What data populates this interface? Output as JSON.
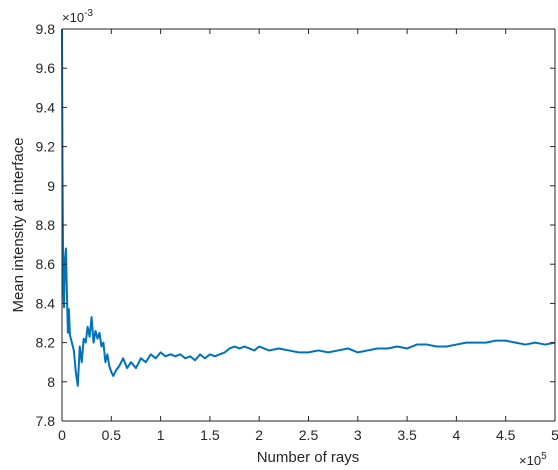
{
  "chart_data": {
    "type": "line",
    "title": "",
    "xlabel": "Number of rays",
    "ylabel": "Mean intensity at interface",
    "x_multiplier_label": "×10",
    "x_multiplier_exp": "5",
    "y_multiplier_label": "×10",
    "y_multiplier_exp": "-3",
    "xlim": [
      0,
      5
    ],
    "ylim": [
      7.8,
      9.8
    ],
    "xticks": [
      0,
      0.5,
      1,
      1.5,
      2,
      2.5,
      3,
      3.5,
      4,
      4.5,
      5
    ],
    "xtick_labels": [
      "0",
      "0.5",
      "1",
      "1.5",
      "2",
      "2.5",
      "3",
      "3.5",
      "4",
      "4.5",
      "5"
    ],
    "yticks": [
      7.8,
      8,
      8.2,
      8.4,
      8.6,
      8.8,
      9,
      9.2,
      9.4,
      9.6,
      9.8
    ],
    "ytick_labels": [
      "7.8",
      "8",
      "8.2",
      "8.4",
      "8.6",
      "8.8",
      "9",
      "9.2",
      "9.4",
      "9.6",
      "9.8"
    ],
    "grid": false,
    "line_color": "#0072BD",
    "series": [
      {
        "x": [
          0,
          0.005,
          0.01,
          0.015,
          0.02,
          0.03,
          0.04,
          0.05,
          0.06,
          0.07,
          0.08,
          0.1,
          0.12,
          0.14,
          0.16,
          0.18,
          0.2,
          0.22,
          0.24,
          0.26,
          0.28,
          0.3,
          0.32,
          0.34,
          0.36,
          0.38,
          0.4,
          0.42,
          0.44,
          0.46,
          0.48,
          0.5,
          0.52,
          0.55,
          0.58,
          0.62,
          0.66,
          0.7,
          0.75,
          0.8,
          0.85,
          0.9,
          0.95,
          1.0,
          1.05,
          1.1,
          1.15,
          1.2,
          1.25,
          1.3,
          1.35,
          1.4,
          1.45,
          1.5,
          1.55,
          1.6,
          1.65,
          1.7,
          1.75,
          1.8,
          1.85,
          1.9,
          1.95,
          2.0,
          2.1,
          2.2,
          2.3,
          2.4,
          2.5,
          2.6,
          2.7,
          2.8,
          2.9,
          3.0,
          3.1,
          3.2,
          3.3,
          3.4,
          3.5,
          3.6,
          3.7,
          3.8,
          3.9,
          4.0,
          4.1,
          4.2,
          4.3,
          4.4,
          4.5,
          4.6,
          4.7,
          4.8,
          4.9,
          5.0
        ],
        "y": [
          9.8,
          9.1,
          8.7,
          8.45,
          8.38,
          8.62,
          8.68,
          8.45,
          8.25,
          8.37,
          8.24,
          8.2,
          8.16,
          8.05,
          7.98,
          8.18,
          8.1,
          8.22,
          8.2,
          8.28,
          8.23,
          8.33,
          8.2,
          8.26,
          8.22,
          8.25,
          8.18,
          8.2,
          8.1,
          8.14,
          8.08,
          8.05,
          8.03,
          8.06,
          8.08,
          8.12,
          8.07,
          8.1,
          8.07,
          8.12,
          8.1,
          8.14,
          8.12,
          8.15,
          8.13,
          8.14,
          8.13,
          8.14,
          8.12,
          8.13,
          8.11,
          8.14,
          8.12,
          8.14,
          8.13,
          8.14,
          8.15,
          8.17,
          8.18,
          8.17,
          8.18,
          8.17,
          8.16,
          8.18,
          8.16,
          8.17,
          8.16,
          8.15,
          8.15,
          8.16,
          8.15,
          8.16,
          8.17,
          8.15,
          8.16,
          8.17,
          8.17,
          8.18,
          8.17,
          8.19,
          8.19,
          8.18,
          8.18,
          8.19,
          8.2,
          8.2,
          8.2,
          8.21,
          8.21,
          8.2,
          8.19,
          8.2,
          8.19,
          8.2
        ]
      }
    ]
  }
}
